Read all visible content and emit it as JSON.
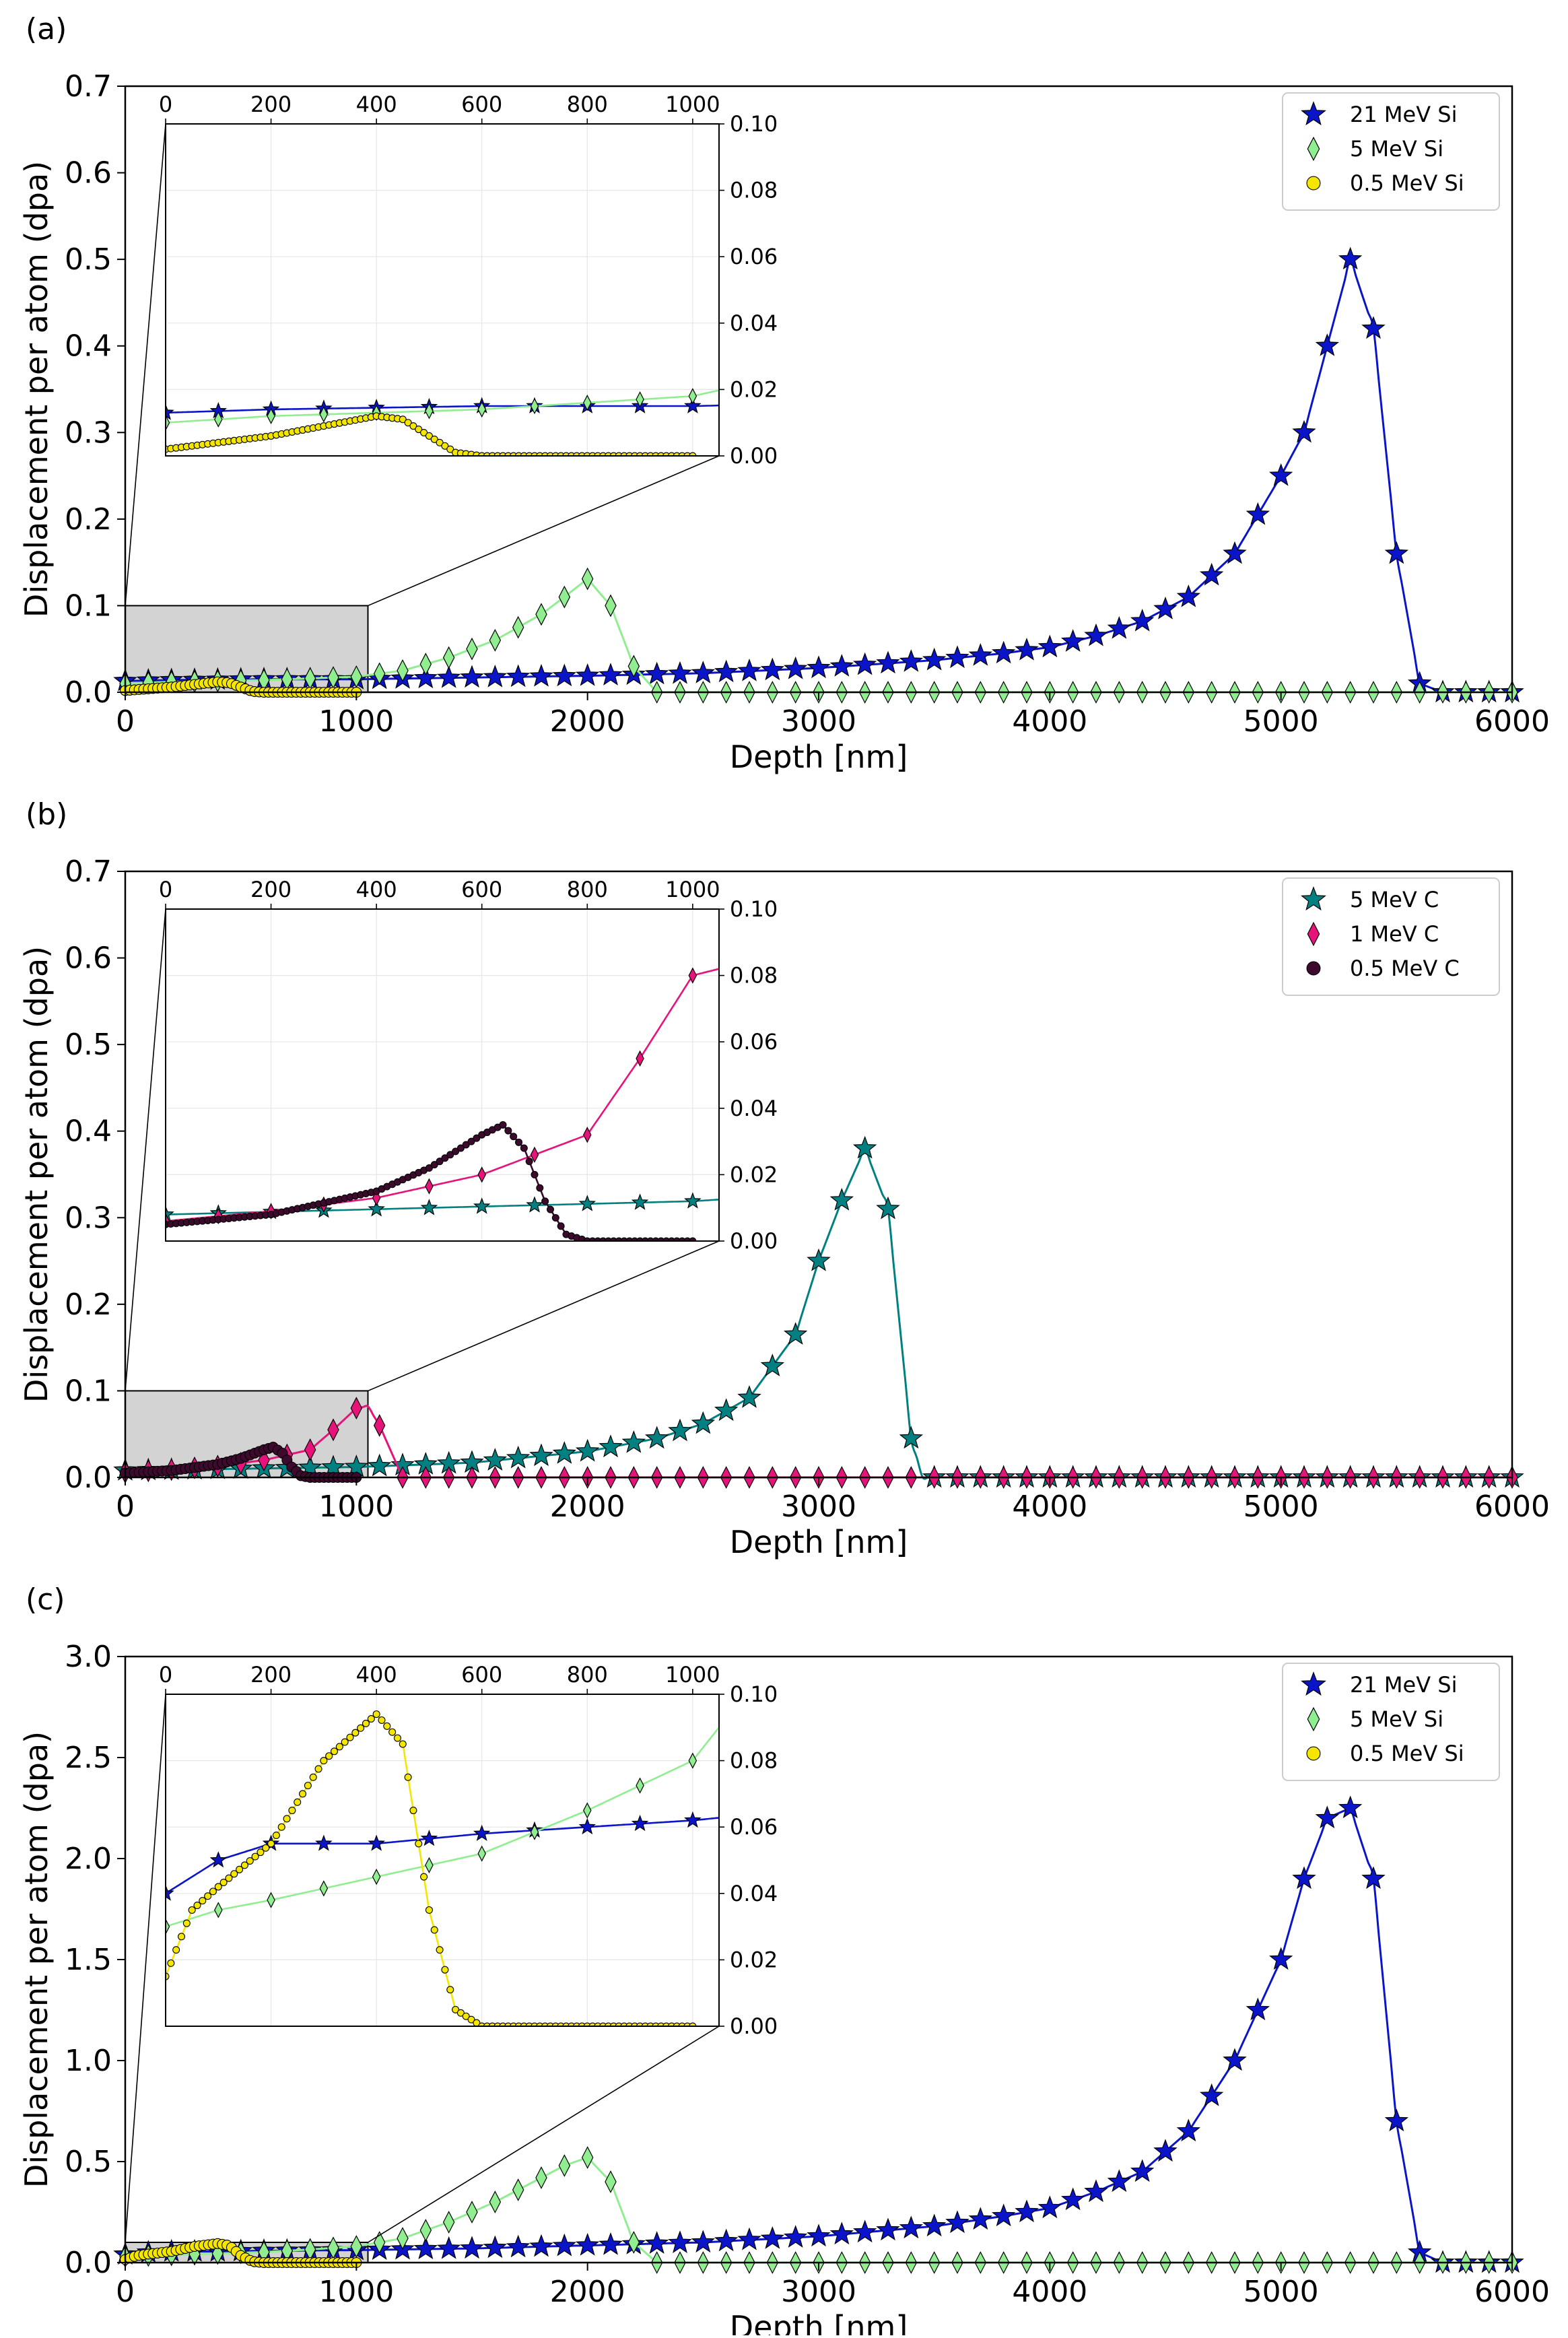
{
  "chart_data": [
    {
      "panel_label": "(a)",
      "type": "line",
      "xlabel": "Depth [nm]",
      "ylabel": "Displacement per atom (dpa)",
      "xlim": [
        0,
        6000
      ],
      "ylim": [
        0,
        0.7
      ],
      "xticks": [
        "0",
        "1000",
        "2000",
        "3000",
        "4000",
        "5000",
        "6000"
      ],
      "yticks": [
        "0.0",
        "0.1",
        "0.2",
        "0.3",
        "0.4",
        "0.5",
        "0.6",
        "0.7"
      ],
      "legend_position": "top-right",
      "zoom_region": {
        "x": [
          0,
          1050
        ],
        "y": [
          0,
          0.1
        ]
      },
      "series": [
        {
          "name": "21 MeV Si",
          "color": "#0a14c8",
          "marker": "star",
          "points": [
            [
              0,
              0.013
            ],
            [
              200,
              0.014
            ],
            [
              600,
              0.015
            ],
            [
              1000,
              0.015
            ],
            [
              1500,
              0.017
            ],
            [
              2000,
              0.019
            ],
            [
              2500,
              0.022
            ],
            [
              3000,
              0.028
            ],
            [
              3500,
              0.037
            ],
            [
              3800,
              0.045
            ],
            [
              4000,
              0.052
            ],
            [
              4200,
              0.065
            ],
            [
              4400,
              0.082
            ],
            [
              4600,
              0.11
            ],
            [
              4800,
              0.16
            ],
            [
              5000,
              0.25
            ],
            [
              5100,
              0.3
            ],
            [
              5200,
              0.4
            ],
            [
              5300,
              0.5
            ],
            [
              5400,
              0.42
            ],
            [
              5500,
              0.16
            ],
            [
              5600,
              0.01
            ],
            [
              5700,
              0.0
            ],
            [
              6000,
              0.0
            ]
          ]
        },
        {
          "name": "5 MeV Si",
          "color": "#90ee90",
          "marker": "diamond",
          "points": [
            [
              0,
              0.01
            ],
            [
              200,
              0.012
            ],
            [
              600,
              0.014
            ],
            [
              1000,
              0.018
            ],
            [
              1200,
              0.025
            ],
            [
              1400,
              0.04
            ],
            [
              1600,
              0.06
            ],
            [
              1800,
              0.09
            ],
            [
              1900,
              0.11
            ],
            [
              2000,
              0.131
            ],
            [
              2100,
              0.1
            ],
            [
              2200,
              0.03
            ],
            [
              2300,
              0.0
            ],
            [
              6000,
              0.0
            ]
          ]
        },
        {
          "name": "0.5 MeV Si",
          "color": "#f5e600",
          "marker": "circle",
          "points": [
            [
              0,
              0.002
            ],
            [
              100,
              0.004
            ],
            [
              200,
              0.006
            ],
            [
              300,
              0.009
            ],
            [
              400,
              0.012
            ],
            [
              450,
              0.011
            ],
            [
              500,
              0.006
            ],
            [
              550,
              0.001
            ],
            [
              600,
              0.0
            ],
            [
              1000,
              0.0
            ]
          ]
        }
      ],
      "inset": {
        "xlim": [
          0,
          1050
        ],
        "ylim": [
          0,
          0.1
        ],
        "xticks": [
          "0",
          "200",
          "400",
          "600",
          "800",
          "1000"
        ],
        "yticks": [
          "0.00",
          "0.02",
          "0.04",
          "0.06",
          "0.08",
          "0.10"
        ]
      }
    },
    {
      "panel_label": "(b)",
      "type": "line",
      "xlabel": "Depth [nm]",
      "ylabel": "Displacement per atom (dpa)",
      "xlim": [
        0,
        6000
      ],
      "ylim": [
        0,
        0.7
      ],
      "xticks": [
        "0",
        "1000",
        "2000",
        "3000",
        "4000",
        "5000",
        "6000"
      ],
      "yticks": [
        "0.0",
        "0.1",
        "0.2",
        "0.3",
        "0.4",
        "0.5",
        "0.6",
        "0.7"
      ],
      "legend_position": "top-right",
      "zoom_region": {
        "x": [
          0,
          1050
        ],
        "y": [
          0,
          0.1
        ]
      },
      "series": [
        {
          "name": "5 MeV C",
          "color": "#008080",
          "marker": "star",
          "points": [
            [
              0,
              0.008
            ],
            [
              500,
              0.01
            ],
            [
              1000,
              0.012
            ],
            [
              1500,
              0.017
            ],
            [
              2000,
              0.03
            ],
            [
              2300,
              0.045
            ],
            [
              2500,
              0.062
            ],
            [
              2700,
              0.092
            ],
            [
              2900,
              0.165
            ],
            [
              3000,
              0.25
            ],
            [
              3100,
              0.32
            ],
            [
              3200,
              0.38
            ],
            [
              3300,
              0.31
            ],
            [
              3400,
              0.045
            ],
            [
              3450,
              0.0
            ],
            [
              6000,
              0.0
            ]
          ]
        },
        {
          "name": "1 MeV C",
          "color": "#e6137a",
          "marker": "diamond",
          "points": [
            [
              0,
              0.006
            ],
            [
              200,
              0.009
            ],
            [
              400,
              0.013
            ],
            [
              600,
              0.02
            ],
            [
              800,
              0.032
            ],
            [
              900,
              0.055
            ],
            [
              1000,
              0.08
            ],
            [
              1050,
              0.082
            ],
            [
              1100,
              0.06
            ],
            [
              1150,
              0.03
            ],
            [
              1200,
              0.0
            ],
            [
              6000,
              0.0
            ]
          ]
        },
        {
          "name": "0.5 MeV C",
          "color": "#3d0a2e",
          "marker": "circle",
          "points": [
            [
              0,
              0.005
            ],
            [
              200,
              0.008
            ],
            [
              400,
              0.015
            ],
            [
              500,
              0.022
            ],
            [
              600,
              0.032
            ],
            [
              640,
              0.035
            ],
            [
              680,
              0.028
            ],
            [
              720,
              0.012
            ],
            [
              760,
              0.002
            ],
            [
              800,
              0.0
            ],
            [
              1000,
              0.0
            ]
          ]
        }
      ],
      "inset": {
        "xlim": [
          0,
          1050
        ],
        "ylim": [
          0,
          0.1
        ],
        "xticks": [
          "0",
          "200",
          "400",
          "600",
          "800",
          "1000"
        ],
        "yticks": [
          "0.00",
          "0.02",
          "0.04",
          "0.06",
          "0.08",
          "0.10"
        ]
      }
    },
    {
      "panel_label": "(c)",
      "type": "line",
      "xlabel": "Depth [nm]",
      "ylabel": "Displacement per atom (dpa)",
      "xlim": [
        0,
        6000
      ],
      "ylim": [
        0,
        3.0
      ],
      "xticks": [
        "0",
        "1000",
        "2000",
        "3000",
        "4000",
        "5000",
        "6000"
      ],
      "yticks": [
        "0.0",
        "0.5",
        "1.0",
        "1.5",
        "2.0",
        "2.5",
        "3.0"
      ],
      "legend_position": "top-right",
      "zoom_region": {
        "x": [
          0,
          1050
        ],
        "y": [
          0,
          0.1
        ]
      },
      "series": [
        {
          "name": "21 MeV Si",
          "color": "#0a14c8",
          "marker": "star",
          "points": [
            [
              0,
              0.04
            ],
            [
              100,
              0.05
            ],
            [
              200,
              0.055
            ],
            [
              400,
              0.055
            ],
            [
              600,
              0.058
            ],
            [
              800,
              0.06
            ],
            [
              1000,
              0.062
            ],
            [
              1500,
              0.07
            ],
            [
              2000,
              0.085
            ],
            [
              2500,
              0.1
            ],
            [
              3000,
              0.13
            ],
            [
              3500,
              0.18
            ],
            [
              3800,
              0.23
            ],
            [
              4000,
              0.27
            ],
            [
              4200,
              0.35
            ],
            [
              4400,
              0.45
            ],
            [
              4600,
              0.65
            ],
            [
              4800,
              1.0
            ],
            [
              5000,
              1.5
            ],
            [
              5100,
              1.9
            ],
            [
              5200,
              2.2
            ],
            [
              5300,
              2.25
            ],
            [
              5400,
              1.9
            ],
            [
              5500,
              0.7
            ],
            [
              5600,
              0.05
            ],
            [
              5700,
              0.0
            ],
            [
              6000,
              0.0
            ]
          ]
        },
        {
          "name": "5 MeV Si",
          "color": "#90ee90",
          "marker": "diamond",
          "points": [
            [
              0,
              0.03
            ],
            [
              100,
              0.035
            ],
            [
              200,
              0.038
            ],
            [
              400,
              0.045
            ],
            [
              600,
              0.052
            ],
            [
              800,
              0.065
            ],
            [
              1000,
              0.08
            ],
            [
              1200,
              0.12
            ],
            [
              1400,
              0.2
            ],
            [
              1600,
              0.3
            ],
            [
              1800,
              0.42
            ],
            [
              1900,
              0.48
            ],
            [
              2000,
              0.52
            ],
            [
              2100,
              0.4
            ],
            [
              2200,
              0.1
            ],
            [
              2300,
              0.0
            ],
            [
              6000,
              0.0
            ]
          ]
        },
        {
          "name": "0.5 MeV Si",
          "color": "#f5e600",
          "marker": "circle",
          "points": [
            [
              0,
              0.015
            ],
            [
              50,
              0.035
            ],
            [
              100,
              0.042
            ],
            [
              200,
              0.055
            ],
            [
              300,
              0.08
            ],
            [
              400,
              0.094
            ],
            [
              450,
              0.085
            ],
            [
              500,
              0.035
            ],
            [
              550,
              0.005
            ],
            [
              600,
              0.0
            ],
            [
              1000,
              0.0
            ]
          ]
        }
      ],
      "inset": {
        "xlim": [
          0,
          1050
        ],
        "ylim": [
          0,
          0.1
        ],
        "xticks": [
          "0",
          "200",
          "400",
          "600",
          "800",
          "1000"
        ],
        "yticks": [
          "0.00",
          "0.02",
          "0.04",
          "0.06",
          "0.08",
          "0.10"
        ]
      }
    }
  ]
}
